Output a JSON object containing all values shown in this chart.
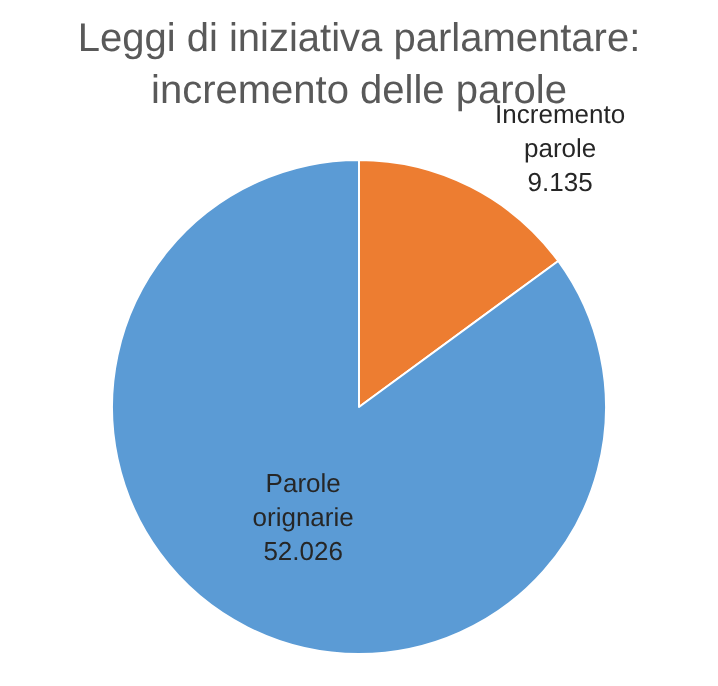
{
  "chart_data": {
    "type": "pie",
    "title": "Leggi di iniziativa parlamentare: incremento delle parole",
    "categories": [
      "Incremento parole",
      "Parole orignarie"
    ],
    "values": [
      9135,
      52026
    ],
    "value_labels": [
      "9.135",
      "52.026"
    ],
    "colors": [
      "#ed7d31",
      "#5b9bd5"
    ],
    "legend": false
  }
}
